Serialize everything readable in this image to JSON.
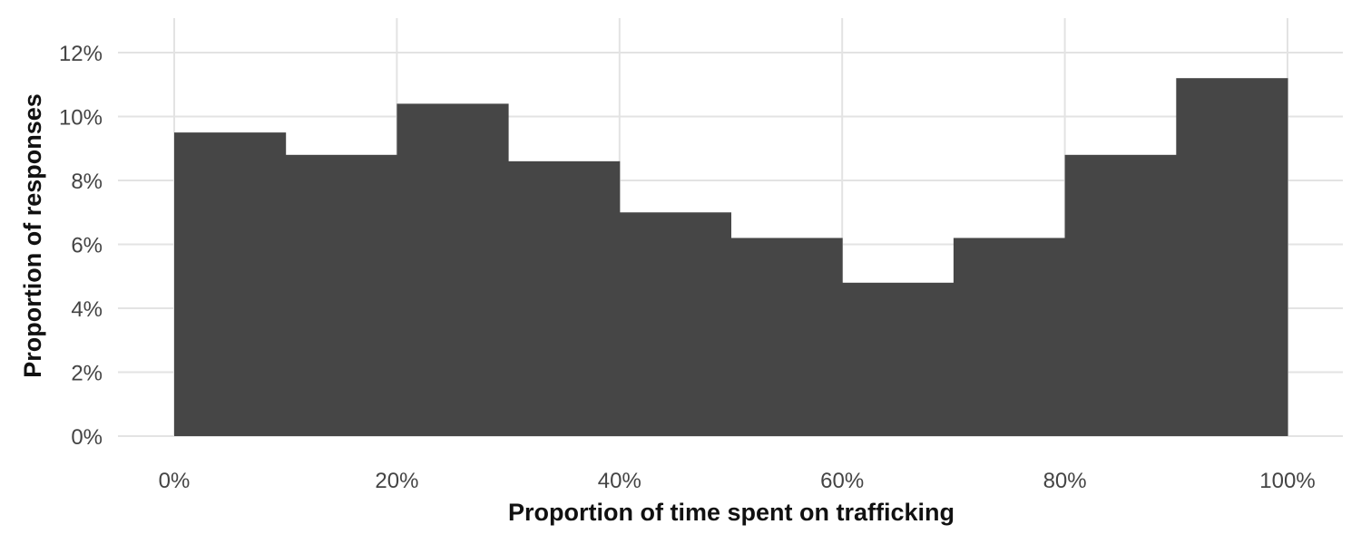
{
  "chart_data": {
    "type": "bar",
    "subtype": "histogram",
    "title": "",
    "xlabel": "Proportion of time spent on trafficking",
    "ylabel": "Proportion of responses",
    "xlim": [
      -0.05,
      1.05
    ],
    "ylim": [
      0,
      0.13
    ],
    "x_ticks": [
      0,
      0.2,
      0.4,
      0.6,
      0.8,
      1.0
    ],
    "x_tick_labels": [
      "0%",
      "20%",
      "40%",
      "60%",
      "80%",
      "100%"
    ],
    "y_ticks": [
      0,
      0.02,
      0.04,
      0.06,
      0.08,
      0.1,
      0.12
    ],
    "y_tick_labels": [
      "0%",
      "2%",
      "4%",
      "6%",
      "8%",
      "10%",
      "12%"
    ],
    "bins": [
      {
        "x0": 0.0,
        "x1": 0.1,
        "value": 0.095
      },
      {
        "x0": 0.1,
        "x1": 0.2,
        "value": 0.088
      },
      {
        "x0": 0.2,
        "x1": 0.3,
        "value": 0.104
      },
      {
        "x0": 0.3,
        "x1": 0.4,
        "value": 0.086
      },
      {
        "x0": 0.4,
        "x1": 0.5,
        "value": 0.07
      },
      {
        "x0": 0.5,
        "x1": 0.6,
        "value": 0.062
      },
      {
        "x0": 0.6,
        "x1": 0.7,
        "value": 0.048
      },
      {
        "x0": 0.7,
        "x1": 0.8,
        "value": 0.062
      },
      {
        "x0": 0.8,
        "x1": 0.9,
        "value": 0.088
      },
      {
        "x0": 0.9,
        "x1": 1.0,
        "value": 0.112
      }
    ],
    "grid": true,
    "legend": "none",
    "bar_color": "#464646",
    "grid_color": "#e3e3e3"
  }
}
